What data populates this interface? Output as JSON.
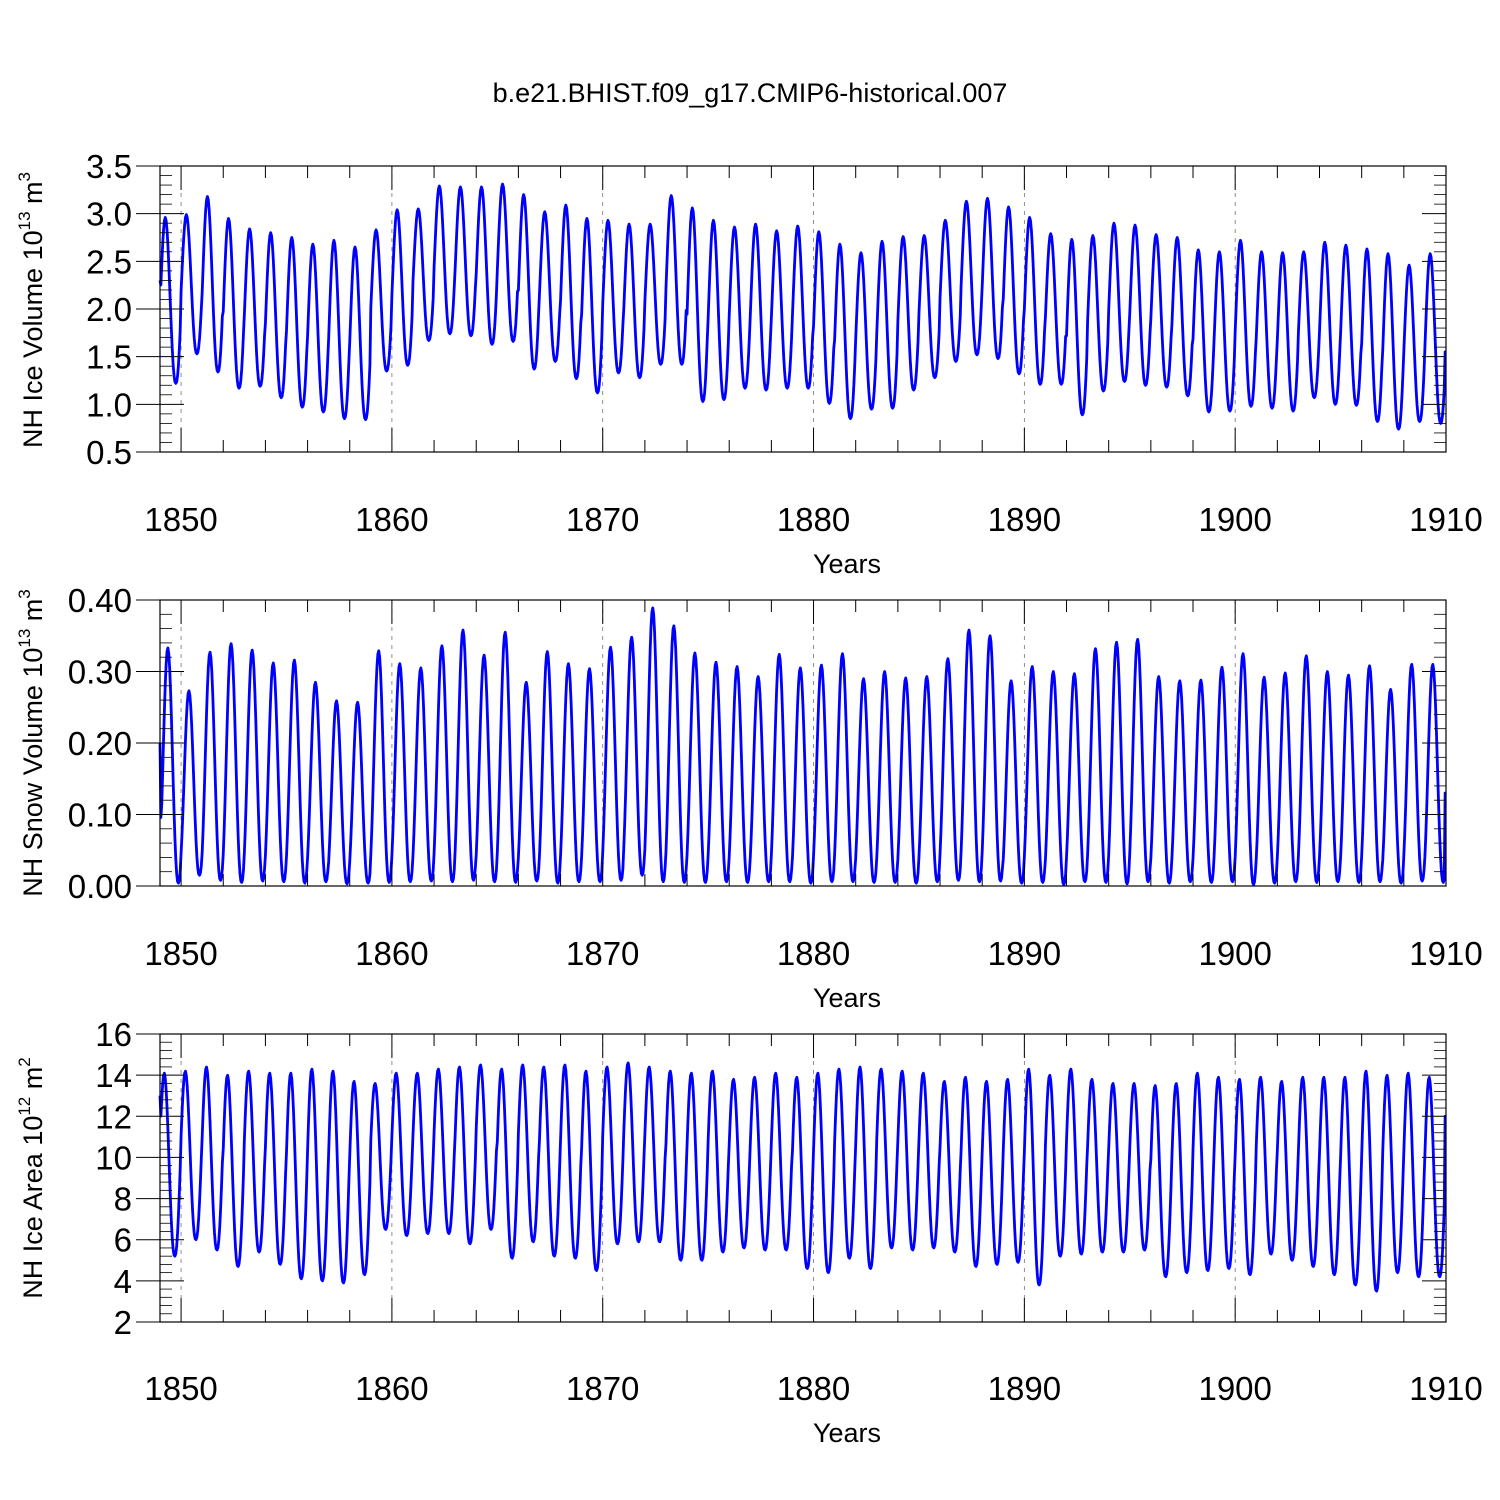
{
  "title": "b.e21.BHIST.f09_g17.CMIP6-historical.007",
  "colors": {
    "series": "#0000ff",
    "frame": "#000000",
    "grid": "#000000"
  },
  "chart_data": [
    {
      "type": "line",
      "name": "nh-ice-volume",
      "ylabel": {
        "main": "NH Ice Volume 10",
        "exp": "13",
        "unit": " m",
        "unit_exp": "3"
      },
      "xlabel": "Years",
      "xlim": [
        1849.0,
        1910.0
      ],
      "ylim": [
        0.5,
        3.5
      ],
      "xticks": [
        1850,
        1860,
        1870,
        1880,
        1890,
        1900,
        1910
      ],
      "yticks": [
        0.5,
        1.0,
        1.5,
        2.0,
        2.5,
        3.0,
        3.5
      ],
      "ytick_labels": [
        "0.5",
        "1.0",
        "1.5",
        "2.0",
        "2.5",
        "3.0",
        "3.5"
      ],
      "start_value": 2.3,
      "end_value": 1.55,
      "phase": 0.25,
      "series_name": "NH Ice Volume",
      "annual_max": [
        2.96,
        2.99,
        3.18,
        2.95,
        2.84,
        2.8,
        2.75,
        2.68,
        2.72,
        2.65,
        2.83,
        3.04,
        3.05,
        3.29,
        3.28,
        3.28,
        3.31,
        3.2,
        3.02,
        3.09,
        2.95,
        2.93,
        2.89,
        2.89,
        3.19,
        3.06,
        2.93,
        2.86,
        2.89,
        2.82,
        2.87,
        2.81,
        2.68,
        2.59,
        2.71,
        2.76,
        2.77,
        2.93,
        3.13,
        3.16,
        3.07,
        2.96,
        2.79,
        2.73,
        2.77,
        2.9,
        2.88,
        2.78,
        2.75,
        2.62,
        2.6,
        2.72,
        2.6,
        2.59,
        2.6,
        2.7,
        2.67,
        2.63,
        2.58,
        2.46,
        2.58
      ],
      "annual_min": [
        1.22,
        1.53,
        1.34,
        1.17,
        1.19,
        1.07,
        0.97,
        0.92,
        0.85,
        0.84,
        1.35,
        1.41,
        1.67,
        1.74,
        1.72,
        1.63,
        1.66,
        1.37,
        1.45,
        1.27,
        1.12,
        1.33,
        1.28,
        1.42,
        1.42,
        1.03,
        1.05,
        1.17,
        1.15,
        1.17,
        1.17,
        1.01,
        0.85,
        0.95,
        0.96,
        1.15,
        1.28,
        1.45,
        1.52,
        1.48,
        1.32,
        1.21,
        1.21,
        0.89,
        1.14,
        1.24,
        1.2,
        1.18,
        1.09,
        0.92,
        0.93,
        0.98,
        0.96,
        0.93,
        1.07,
        1.0,
        0.99,
        0.82,
        0.74,
        0.82,
        0.8
      ]
    },
    {
      "type": "line",
      "name": "nh-snow-volume",
      "ylabel": {
        "main": "NH Snow Volume 10",
        "exp": "13",
        "unit": " m",
        "unit_exp": "3"
      },
      "xlabel": "Years",
      "xlim": [
        1849.0,
        1910.0
      ],
      "ylim": [
        0.0,
        0.4
      ],
      "xticks": [
        1850,
        1860,
        1870,
        1880,
        1890,
        1900,
        1910
      ],
      "yticks": [
        0.0,
        0.1,
        0.2,
        0.3,
        0.4
      ],
      "ytick_labels": [
        "0.00",
        "0.10",
        "0.20",
        "0.30",
        "0.40"
      ],
      "start_value": 0.2,
      "end_value": 0.13,
      "phase": 0.37,
      "series_name": "NH Snow Volume",
      "annual_max": [
        0.333,
        0.273,
        0.327,
        0.339,
        0.33,
        0.312,
        0.316,
        0.285,
        0.259,
        0.257,
        0.329,
        0.311,
        0.305,
        0.336,
        0.358,
        0.323,
        0.355,
        0.285,
        0.328,
        0.311,
        0.304,
        0.334,
        0.348,
        0.389,
        0.364,
        0.326,
        0.313,
        0.307,
        0.293,
        0.324,
        0.305,
        0.309,
        0.325,
        0.29,
        0.3,
        0.291,
        0.293,
        0.318,
        0.358,
        0.35,
        0.287,
        0.307,
        0.3,
        0.297,
        0.332,
        0.341,
        0.345,
        0.293,
        0.287,
        0.288,
        0.306,
        0.325,
        0.292,
        0.298,
        0.322,
        0.3,
        0.295,
        0.308,
        0.275,
        0.31,
        0.31
      ],
      "annual_min": [
        0.004,
        0.015,
        0.008,
        0.005,
        0.007,
        0.006,
        0.004,
        0.006,
        0.003,
        0.004,
        0.005,
        0.006,
        0.007,
        0.006,
        0.008,
        0.006,
        0.005,
        0.007,
        0.004,
        0.006,
        0.006,
        0.008,
        0.015,
        0.006,
        0.005,
        0.005,
        0.006,
        0.005,
        0.006,
        0.006,
        0.004,
        0.006,
        0.006,
        0.005,
        0.005,
        0.004,
        0.006,
        0.008,
        0.006,
        0.007,
        0.004,
        0.005,
        0.002,
        0.006,
        0.005,
        0.003,
        0.006,
        0.004,
        0.006,
        0.005,
        0.006,
        0.002,
        0.004,
        0.006,
        0.005,
        0.006,
        0.005,
        0.006,
        0.004,
        0.007,
        0.005
      ]
    },
    {
      "type": "line",
      "name": "nh-ice-area",
      "ylabel": {
        "main": "NH Ice Area 10",
        "exp": "12",
        "unit": " m",
        "unit_exp": "2"
      },
      "xlabel": "Years",
      "xlim": [
        1849.0,
        1910.0
      ],
      "ylim": [
        2,
        16
      ],
      "xticks": [
        1850,
        1860,
        1870,
        1880,
        1890,
        1900,
        1910
      ],
      "yticks": [
        2,
        4,
        6,
        8,
        10,
        12,
        14,
        16
      ],
      "ytick_labels": [
        "2",
        "4",
        "6",
        "8",
        "10",
        "12",
        "14",
        "16"
      ],
      "start_value": 13.0,
      "end_value": 12.0,
      "phase": 0.2,
      "series_name": "NH Ice Area",
      "annual_max": [
        14.1,
        14.2,
        14.4,
        14.0,
        14.2,
        14.1,
        14.1,
        14.3,
        14.2,
        13.7,
        13.6,
        14.1,
        14.1,
        14.3,
        14.4,
        14.5,
        14.3,
        14.5,
        14.4,
        14.5,
        14.2,
        14.4,
        14.6,
        14.4,
        14.2,
        14.1,
        14.2,
        13.8,
        13.9,
        14.1,
        13.9,
        14.1,
        14.3,
        14.4,
        14.3,
        14.2,
        14.1,
        13.7,
        13.9,
        13.7,
        13.8,
        14.3,
        14.0,
        14.3,
        13.8,
        13.6,
        13.6,
        13.5,
        13.6,
        14.1,
        13.9,
        13.8,
        13.9,
        13.7,
        13.9,
        13.9,
        13.9,
        14.2,
        14.0,
        14.1,
        13.9
      ],
      "annual_min": [
        5.2,
        6.0,
        5.5,
        4.7,
        5.4,
        4.8,
        4.1,
        4.0,
        3.9,
        4.3,
        6.5,
        6.2,
        6.3,
        6.3,
        5.8,
        6.5,
        5.1,
        5.9,
        5.2,
        5.1,
        4.5,
        5.8,
        5.9,
        5.9,
        5.0,
        5.0,
        5.4,
        5.6,
        5.5,
        5.5,
        4.6,
        4.4,
        5.1,
        4.6,
        5.6,
        5.5,
        5.6,
        5.4,
        4.7,
        4.8,
        4.9,
        3.8,
        5.2,
        5.3,
        5.4,
        5.4,
        5.5,
        4.2,
        4.4,
        4.5,
        4.6,
        4.3,
        5.3,
        5.0,
        4.7,
        4.3,
        3.8,
        3.5,
        4.4,
        4.2,
        4.2
      ]
    }
  ]
}
